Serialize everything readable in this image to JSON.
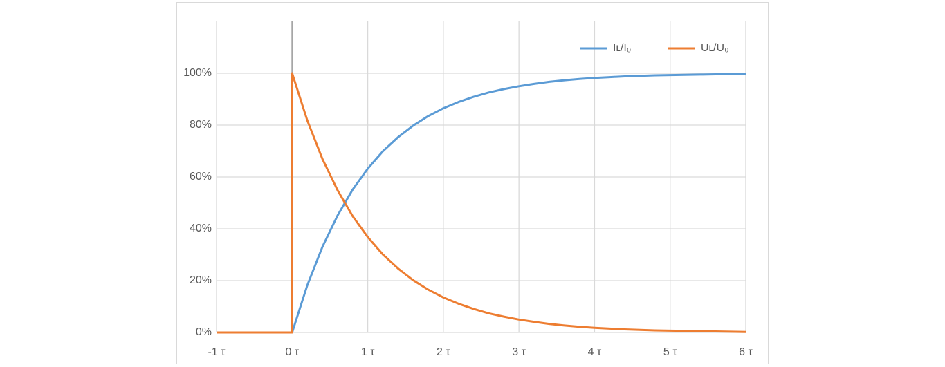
{
  "chart_data": {
    "type": "line",
    "x": [
      -1,
      0,
      0,
      0.2,
      0.4,
      0.6,
      0.8,
      1.0,
      1.2,
      1.4,
      1.6,
      1.8,
      2.0,
      2.2,
      2.4,
      2.6,
      2.8,
      3.0,
      3.2,
      3.4,
      3.6,
      3.8,
      4.0,
      4.2,
      4.4,
      4.6,
      4.8,
      5.0,
      5.2,
      5.4,
      5.6,
      5.8,
      6.0
    ],
    "series": [
      {
        "name": "Iʟ/I₀",
        "color": "#5b9bd5",
        "values": [
          0,
          0,
          0,
          18.1,
          33.0,
          45.1,
          55.1,
          63.2,
          69.9,
          75.3,
          79.8,
          83.5,
          86.5,
          88.9,
          90.9,
          92.6,
          93.9,
          95.0,
          95.9,
          96.7,
          97.3,
          97.8,
          98.2,
          98.5,
          98.8,
          99.0,
          99.2,
          99.3,
          99.4,
          99.5,
          99.6,
          99.7,
          99.8
        ]
      },
      {
        "name": "Uʟ/U₀",
        "color": "#ed7d31",
        "values": [
          0,
          0,
          100,
          81.9,
          67.0,
          54.9,
          44.9,
          36.8,
          30.1,
          24.7,
          20.2,
          16.5,
          13.5,
          11.1,
          9.1,
          7.4,
          6.1,
          5.0,
          4.1,
          3.3,
          2.7,
          2.2,
          1.8,
          1.5,
          1.2,
          1.0,
          0.8,
          0.7,
          0.6,
          0.5,
          0.4,
          0.3,
          0.2
        ]
      }
    ],
    "xlim": [
      -1,
      6
    ],
    "xticks": [
      {
        "value": -1,
        "label": "-1 τ"
      },
      {
        "value": 0,
        "label": "0 τ"
      },
      {
        "value": 1,
        "label": "1 τ"
      },
      {
        "value": 2,
        "label": "2 τ"
      },
      {
        "value": 3,
        "label": "3 τ"
      },
      {
        "value": 4,
        "label": "4 τ"
      },
      {
        "value": 5,
        "label": "5 τ"
      },
      {
        "value": 6,
        "label": "6 τ"
      }
    ],
    "ylim": [
      0,
      120
    ],
    "yticks": [
      {
        "value": 0,
        "label": "0%"
      },
      {
        "value": 20,
        "label": "20%"
      },
      {
        "value": 40,
        "label": "40%"
      },
      {
        "value": 60,
        "label": "60%"
      },
      {
        "value": 80,
        "label": "80%"
      },
      {
        "value": 100,
        "label": "100%"
      }
    ],
    "grid": true,
    "legend": "top-right"
  }
}
